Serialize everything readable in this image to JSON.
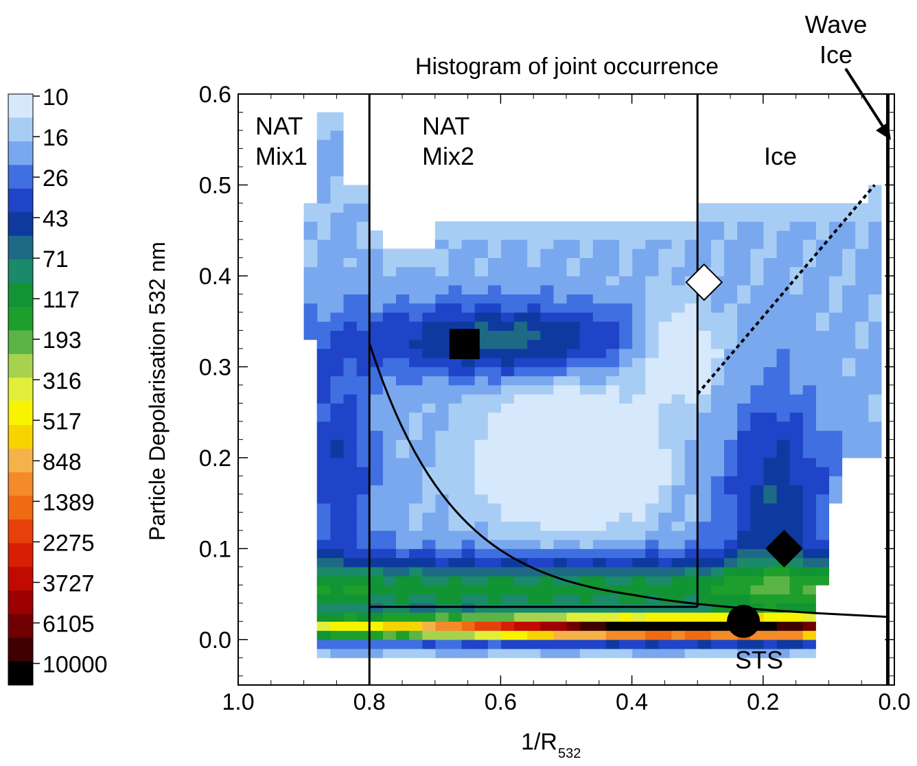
{
  "chart_data": {
    "type": "heatmap",
    "title": "Histogram of joint occurrence",
    "xlabel_main": "1/R",
    "xlabel_sub": "532",
    "ylabel": "Particle Depolarisation 532 nm",
    "xlim": [
      1.0,
      0.0
    ],
    "ylim": [
      -0.05,
      0.6
    ],
    "x_reversed": true,
    "x_tick_labels": [
      "1.0",
      "0.8",
      "0.6",
      "0.4",
      "0.2",
      "0.0"
    ],
    "x_tick_values": [
      1.0,
      0.8,
      0.6,
      0.4,
      0.2,
      0.0
    ],
    "y_tick_labels": [
      "0.0",
      "0.1",
      "0.2",
      "0.3",
      "0.4",
      "0.5",
      "0.6"
    ],
    "y_tick_values": [
      0.0,
      0.1,
      0.2,
      0.3,
      0.4,
      0.5,
      0.6
    ],
    "colorbar": {
      "labels": [
        "10",
        "16",
        "26",
        "43",
        "71",
        "117",
        "193",
        "316",
        "517",
        "848",
        "1389",
        "2275",
        "3727",
        "6105",
        "10000"
      ],
      "colors": [
        "#d6e8fb",
        "#a8cdf5",
        "#7aa8ee",
        "#3f6fe0",
        "#1f44c8",
        "#0e3aa0",
        "#1e6a86",
        "#1a8a6a",
        "#119433",
        "#1e9e2a",
        "#5bb445",
        "#a7d24f",
        "#e1ef3a",
        "#f8f400",
        "#f7d400",
        "#f6b24a",
        "#f48a2a",
        "#f06a14",
        "#e8400a",
        "#d81e04",
        "#c00a02",
        "#9c0000",
        "#700000",
        "#3e0000",
        "#000000"
      ],
      "cells_per_label": 2
    },
    "bin_width_x": 0.02,
    "bin_height_y": 0.01,
    "regions": [
      {
        "label_line1": "NAT",
        "label_line2": "Mix1"
      },
      {
        "label_line1": "NAT",
        "label_line2": "Mix2"
      },
      {
        "label_line1": "",
        "label_line2": "Ice"
      },
      {
        "label_line1": "Wave",
        "label_line2": "Ice"
      },
      {
        "label_line1": "",
        "label_line2": "STS"
      }
    ],
    "boundaries": {
      "vertical_lines_x": [
        0.8,
        0.3,
        0.01
      ],
      "sts_box": {
        "x": [
          0.8,
          0.3
        ],
        "y": [
          -0.05,
          0.036
        ]
      },
      "curve_threshold": 0.26,
      "dashed_ice_line": {
        "x": [
          0.3,
          0.03
        ],
        "y": [
          0.27,
          0.5
        ]
      }
    },
    "markers": [
      {
        "shape": "square",
        "fill": "#000000",
        "x": 0.655,
        "y": 0.325
      },
      {
        "shape": "diamond",
        "fill": "#ffffff",
        "x": 0.29,
        "y": 0.393
      },
      {
        "shape": "diamond",
        "fill": "#000000",
        "x": 0.168,
        "y": 0.1
      },
      {
        "shape": "circle",
        "fill": "#000000",
        "x": 0.23,
        "y": 0.02
      }
    ]
  }
}
